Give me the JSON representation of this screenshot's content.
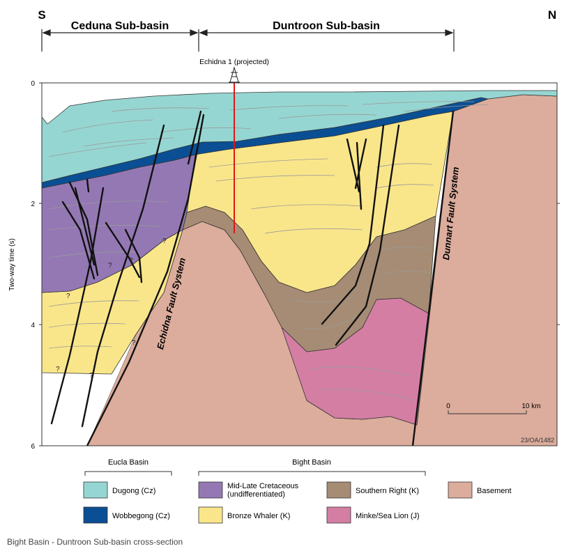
{
  "header": {
    "south": "S",
    "north": "N",
    "sub_basin_left": "Ceduna Sub-basin",
    "sub_basin_right": "Duntroon Sub-basin"
  },
  "well": {
    "label": "Echidna 1 (projected)"
  },
  "axis": {
    "ylabel": "Two-way time (s)",
    "ticks": [
      "0",
      "2",
      "4",
      "6"
    ]
  },
  "faults": {
    "echidna": "Echidna Fault System",
    "dunnart": "Dunnart Fault System"
  },
  "scale": {
    "start": "0",
    "end": "10 km"
  },
  "figure_id": "23/OA/1482",
  "legend": {
    "groups": [
      {
        "label": "Eucla Basin"
      },
      {
        "label": "Bight Basin"
      }
    ],
    "items": [
      {
        "label": "Dugong (Cz)",
        "color": "#96d6d2"
      },
      {
        "label": "Wobbegong (Cz)",
        "color": "#0a4f94"
      },
      {
        "label_line1": "Mid-Late Cretaceous",
        "label_line2": "(undifferentiated)",
        "color": "#9478b4"
      },
      {
        "label": "Bronze Whaler (K)",
        "color": "#fae68a"
      },
      {
        "label": "Southern Right (K)",
        "color": "#a68c74"
      },
      {
        "label": "Minke/Sea Lion (J)",
        "color": "#d47ea4"
      },
      {
        "label": "Basement",
        "color": "#dcac9c"
      }
    ]
  },
  "query_marks": [
    "?",
    "?",
    "?",
    "?",
    "?",
    "?",
    "?"
  ],
  "caption": "Bight Basin - Duntroon Sub-basin cross-section"
}
